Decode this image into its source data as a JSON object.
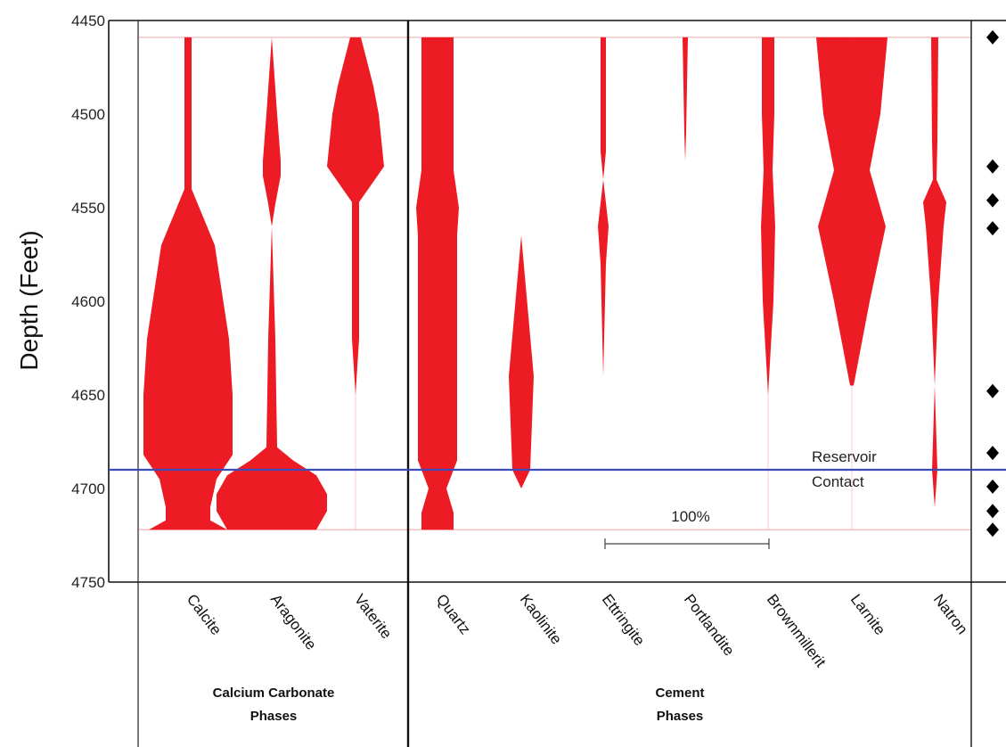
{
  "chart_data": {
    "type": "violin",
    "ylabel": "Depth (Feet)",
    "ylim": [
      4750,
      4450
    ],
    "yticks": [
      4450,
      4500,
      4550,
      4600,
      4650,
      4700,
      4750
    ],
    "scale_bar_label": "100%",
    "reservoir_contact": {
      "depth": 4690,
      "label_line1": "Reservoir",
      "label_line2": "Contact",
      "color": "#3b4bb8"
    },
    "fill_color": "#ed1c24",
    "groups": [
      {
        "label_line1": "Calcium Carbonate",
        "label_line2": "Phases",
        "minerals": [
          "Calcite",
          "Aragonite",
          "Vaterite"
        ]
      },
      {
        "label_line1": "Cement",
        "label_line2": "Phases",
        "minerals": [
          "Quartz",
          "Kaolinite",
          "Ettringite",
          "Portlandite",
          "Brownmillerit",
          "Larnite",
          "Natron"
        ]
      }
    ],
    "series": [
      {
        "name": "Calcite",
        "profile": [
          [
            4459,
            4
          ],
          [
            4540,
            4
          ],
          [
            4570,
            30
          ],
          [
            4620,
            46
          ],
          [
            4650,
            50
          ],
          [
            4682,
            50
          ],
          [
            4695,
            32
          ],
          [
            4710,
            25
          ],
          [
            4717,
            25
          ],
          [
            4722,
            44
          ]
        ]
      },
      {
        "name": "Aragonite",
        "profile": [
          [
            4459,
            0
          ],
          [
            4500,
            6
          ],
          [
            4525,
            10
          ],
          [
            4533,
            10
          ],
          [
            4548,
            4
          ],
          [
            4560,
            0
          ],
          [
            4620,
            4
          ],
          [
            4678,
            6
          ],
          [
            4685,
            24
          ],
          [
            4693,
            50
          ],
          [
            4703,
            62
          ],
          [
            4712,
            62
          ],
          [
            4722,
            50
          ]
        ]
      },
      {
        "name": "Vaterite",
        "profile": [
          [
            4459,
            6
          ],
          [
            4485,
            20
          ],
          [
            4500,
            26
          ],
          [
            4528,
            32
          ],
          [
            4547,
            4
          ],
          [
            4568,
            4
          ],
          [
            4620,
            4
          ],
          [
            4650,
            0
          ]
        ]
      },
      {
        "name": "Quartz",
        "profile": [
          [
            4459,
            18
          ],
          [
            4530,
            18
          ],
          [
            4550,
            24
          ],
          [
            4565,
            22
          ],
          [
            4685,
            22
          ],
          [
            4700,
            10
          ],
          [
            4713,
            18
          ],
          [
            4722,
            18
          ]
        ]
      },
      {
        "name": "Kaolinite",
        "profile": [
          [
            4565,
            0
          ],
          [
            4640,
            14
          ],
          [
            4690,
            10
          ],
          [
            4700,
            0
          ]
        ]
      },
      {
        "name": "Ettringite",
        "profile": [
          [
            4459,
            3
          ],
          [
            4520,
            3
          ],
          [
            4535,
            0
          ],
          [
            4560,
            6
          ],
          [
            4580,
            3
          ],
          [
            4640,
            0
          ]
        ]
      },
      {
        "name": "Portlandite",
        "profile": [
          [
            4459,
            3
          ],
          [
            4510,
            1
          ],
          [
            4525,
            0
          ]
        ]
      },
      {
        "name": "Brownmillerit",
        "profile": [
          [
            4459,
            7
          ],
          [
            4500,
            7
          ],
          [
            4530,
            5
          ],
          [
            4560,
            8
          ],
          [
            4600,
            6
          ],
          [
            4650,
            0
          ]
        ]
      },
      {
        "name": "Larnite",
        "profile": [
          [
            4459,
            40
          ],
          [
            4500,
            32
          ],
          [
            4530,
            20
          ],
          [
            4560,
            38
          ],
          [
            4600,
            20
          ],
          [
            4645,
            2
          ]
        ]
      },
      {
        "name": "Natron",
        "profile": [
          [
            4459,
            4
          ],
          [
            4515,
            3
          ],
          [
            4535,
            2
          ],
          [
            4547,
            13
          ],
          [
            4560,
            10
          ],
          [
            4600,
            4
          ],
          [
            4645,
            0
          ],
          [
            4690,
            3
          ],
          [
            4710,
            0
          ]
        ]
      }
    ],
    "markers": [
      4459,
      4528,
      4546,
      4561,
      4648,
      4681,
      4699,
      4712,
      4722
    ]
  }
}
